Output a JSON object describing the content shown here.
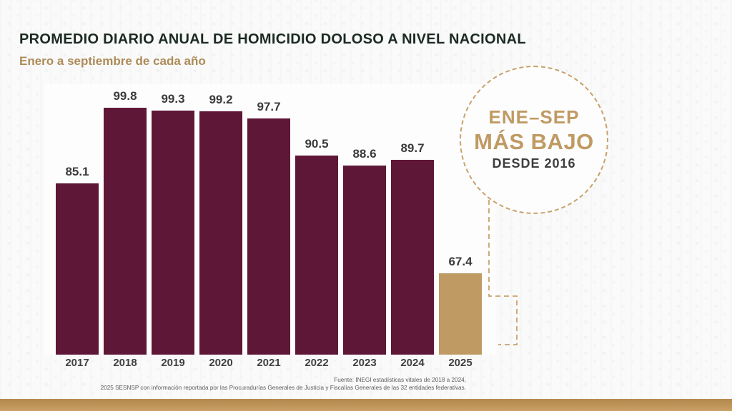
{
  "slide": {
    "title": "PROMEDIO DIARIO ANUAL DE HOMICIDIO DOLOSO A NIVEL NACIONAL",
    "subtitle": "Enero a septiembre de cada año"
  },
  "chart_data": {
    "type": "bar",
    "title": "PROMEDIO DIARIO ANUAL DE HOMICIDIO DOLOSO A NIVEL NACIONAL",
    "subtitle": "Enero a septiembre de cada año",
    "categories": [
      "2017",
      "2018",
      "2019",
      "2020",
      "2021",
      "2022",
      "2023",
      "2024",
      "2025"
    ],
    "values": [
      85.1,
      99.8,
      99.3,
      99.2,
      97.7,
      90.5,
      88.6,
      89.7,
      67.4
    ],
    "highlight_category": "2025",
    "bar_color": "#5f1738",
    "highlight_color": "#bf9a62",
    "ylim": [
      51.5,
      100
    ],
    "data_labels": true,
    "grid": false,
    "legend": false,
    "xlabel": "",
    "ylabel": ""
  },
  "badge": {
    "line1": "ENE–SEP",
    "line2": "MÁS BAJO",
    "line3": "DESDE 2016"
  },
  "footer": {
    "line1": "Fuente: INEGI estadísticas vitales de 2018 a 2024,",
    "line2": "2025 SESNSP con información reportada por las Procuradurías Generales de Justicia y Fiscalías Generales de las 32 entidades federativas."
  },
  "colors": {
    "bar_maroon": "#5f1738",
    "bar_gold": "#bf9a62",
    "accent_gold_text": "#ae8b59",
    "title_text": "#1b2a22",
    "label_text": "#3b3b3b",
    "dashed_gold": "#c9a26b",
    "stripe_top": "#b3894e",
    "stripe_bottom": "#c9a066"
  }
}
